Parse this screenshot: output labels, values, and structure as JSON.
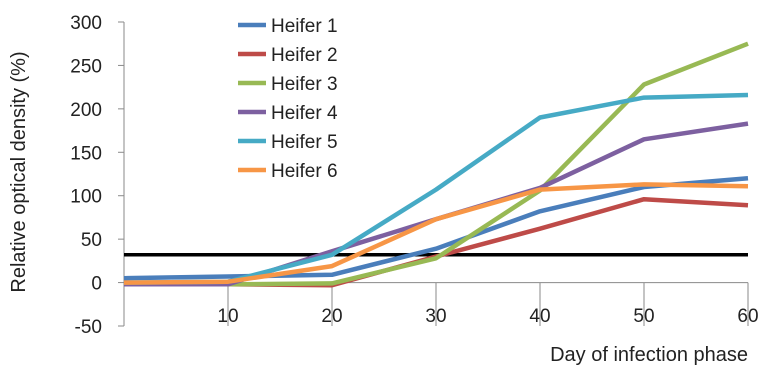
{
  "chart_data": {
    "type": "line",
    "xlabel": "Day of infection phase",
    "ylabel": "Relative optical density (%)",
    "xlim": [
      0,
      60
    ],
    "ylim": [
      -50,
      300
    ],
    "x_ticks": [
      10,
      20,
      30,
      40,
      50,
      60
    ],
    "y_ticks": [
      -50,
      0,
      50,
      100,
      150,
      200,
      250,
      300
    ],
    "grid": false,
    "legend_position": "top-left",
    "x": [
      0,
      10,
      20,
      30,
      40,
      50,
      60
    ],
    "series": [
      {
        "name": "Heifer 1",
        "color": "#4A7EBB",
        "values": [
          5,
          7,
          9,
          39,
          82,
          110,
          120
        ]
      },
      {
        "name": "Heifer 2",
        "color": "#BE4B48",
        "values": [
          0,
          -2,
          -3,
          30,
          62,
          96,
          89
        ]
      },
      {
        "name": "Heifer 3",
        "color": "#98B954",
        "values": [
          -1,
          -2,
          -1,
          28,
          106,
          228,
          275
        ]
      },
      {
        "name": "Heifer 4",
        "color": "#7D60A0",
        "values": [
          -2,
          -2,
          36,
          73,
          109,
          165,
          183
        ]
      },
      {
        "name": "Heifer 5",
        "color": "#46AAC5",
        "values": [
          0,
          1,
          32,
          107,
          190,
          213,
          216
        ]
      },
      {
        "name": "Heifer 6",
        "color": "#F79646",
        "values": [
          0,
          1,
          19,
          73,
          107,
          113,
          111
        ]
      }
    ],
    "threshold": {
      "y": 32,
      "color": "#000000"
    }
  }
}
